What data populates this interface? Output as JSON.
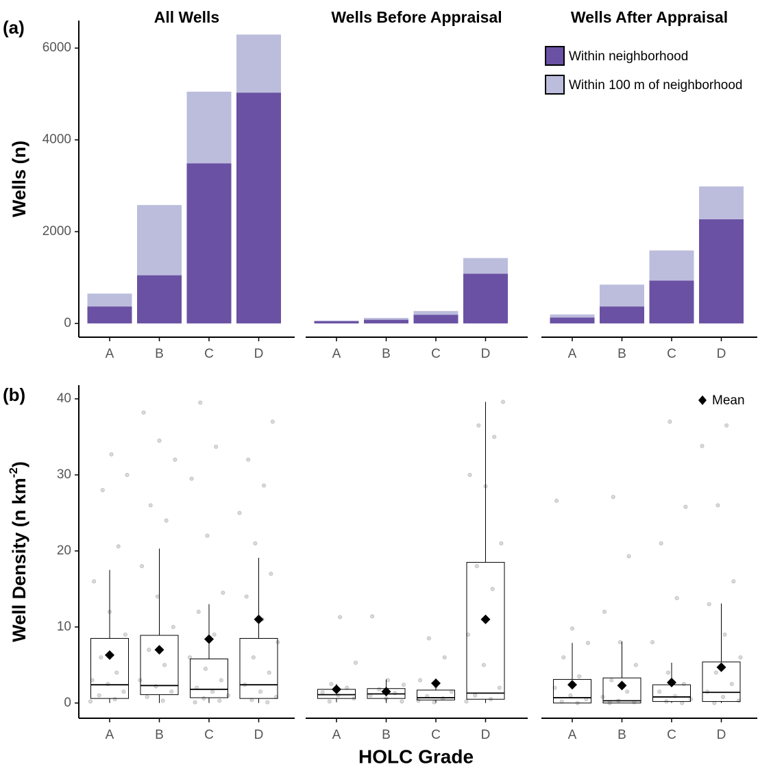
{
  "chart_data": [
    {
      "type": "bar",
      "label": "(a)",
      "ylabel": "Wells (n)",
      "categories": [
        "A",
        "B",
        "C",
        "D"
      ],
      "series": [
        {
          "name": "Within neighborhood",
          "color": "#6a51a3"
        },
        {
          "name": "Within 100 m of neighborhood",
          "color": "#bcbddc"
        }
      ],
      "facets": [
        {
          "title": "All Wells",
          "values": [
            [
              370,
              1050,
              3490,
              5030
            ],
            [
              280,
              1530,
              1560,
              1265
            ]
          ]
        },
        {
          "title": "Wells Before Appraisal",
          "values": [
            [
              50,
              80,
              190,
              1085
            ],
            [
              10,
              40,
              80,
              340
            ]
          ]
        },
        {
          "title": "Wells After Appraisal",
          "values": [
            [
              130,
              370,
              935,
              2270
            ],
            [
              65,
              475,
              655,
              715
            ]
          ]
        }
      ],
      "ylim": [
        -300,
        6600
      ],
      "yticks": [
        0,
        2000,
        4000,
        6000
      ],
      "legend": "top-right"
    },
    {
      "type": "box",
      "label": "(b)",
      "ylabel": [
        "Well Density (n km",
        "-2",
        ")"
      ],
      "xlabel": "HOLC Grade",
      "categories": [
        "A",
        "B",
        "C",
        "D"
      ],
      "mean_label": "Mean",
      "facets": [
        {
          "boxes": [
            {
              "low": 0,
              "q1": 0.6,
              "median": 2.4,
              "q3": 8.5,
              "high": 17.5,
              "mean": 6.3,
              "points": [
                0.2,
                0.5,
                1,
                1.5,
                2.5,
                3,
                4,
                6,
                9,
                12,
                16,
                20.6,
                28,
                30,
                32.7
              ]
            },
            {
              "low": 0,
              "q1": 1.1,
              "median": 2.3,
              "q3": 8.9,
              "high": 20.3,
              "mean": 7.0,
              "points": [
                0.3,
                0.8,
                1.5,
                2.2,
                3,
                5,
                7,
                10,
                14,
                18,
                24,
                26,
                32,
                34.5,
                38.2
              ]
            },
            {
              "low": 0,
              "q1": 0.7,
              "median": 1.8,
              "q3": 5.8,
              "high": 13,
              "mean": 8.4,
              "points": [
                0.1,
                0.3,
                0.6,
                1,
                1.5,
                2,
                3,
                4.5,
                6,
                9,
                12,
                14.5,
                22,
                29.5,
                33.7,
                39.5
              ]
            },
            {
              "low": 0,
              "q1": 0.6,
              "median": 2.4,
              "q3": 8.5,
              "high": 19.1,
              "mean": 11.0,
              "points": [
                0.1,
                0.4,
                0.8,
                1.5,
                2.4,
                4,
                6,
                8,
                11,
                14,
                17,
                21,
                25,
                28.6,
                32,
                37
              ]
            }
          ]
        },
        {
          "boxes": [
            {
              "low": 0.1,
              "q1": 0.6,
              "median": 1.1,
              "q3": 1.8,
              "high": 2.5,
              "mean": 1.8,
              "points": [
                0.2,
                0.6,
                1,
                1.4,
                2,
                2.5,
                5.3,
                11.3
              ]
            },
            {
              "low": 0,
              "q1": 0.6,
              "median": 1.2,
              "q3": 1.9,
              "high": 3.1,
              "mean": 1.5,
              "points": [
                0.2,
                0.6,
                1,
                1.3,
                1.8,
                2.4,
                3,
                11.4
              ]
            },
            {
              "low": 0,
              "q1": 0.4,
              "median": 0.7,
              "q3": 1.7,
              "high": 3.2,
              "mean": 2.6,
              "points": [
                0.1,
                0.3,
                0.6,
                0.9,
                1.5,
                2.2,
                3,
                6,
                8.5
              ]
            },
            {
              "low": 0,
              "q1": 0.5,
              "median": 1.3,
              "q3": 18.5,
              "high": 39.6,
              "mean": 11.0,
              "points": [
                0.2,
                0.5,
                1,
                2,
                5,
                9,
                15,
                18,
                21,
                28.5,
                30,
                35,
                36.5,
                39.6
              ]
            }
          ]
        },
        {
          "boxes": [
            {
              "low": 0,
              "q1": 0,
              "median": 0.7,
              "q3": 3.1,
              "high": 7.9,
              "mean": 2.4,
              "points": [
                0,
                0.2,
                0.5,
                1,
                2,
                3.5,
                6,
                7.9,
                9.8,
                26.6
              ]
            },
            {
              "low": 0,
              "q1": 0,
              "median": 0.3,
              "q3": 3.3,
              "high": 8.1,
              "mean": 2.3,
              "points": [
                0,
                0.1,
                0.3,
                0.8,
                1.5,
                3,
                5,
                8,
                12,
                19.3,
                27.1
              ]
            },
            {
              "low": 0,
              "q1": 0.2,
              "median": 0.8,
              "q3": 2.4,
              "high": 5.3,
              "mean": 2.7,
              "points": [
                0,
                0.2,
                0.5,
                0.9,
                1.5,
                2.5,
                4,
                8,
                13.8,
                21,
                25.8,
                37
              ]
            },
            {
              "low": 0,
              "q1": 0.2,
              "median": 1.4,
              "q3": 5.4,
              "high": 13.1,
              "mean": 4.7,
              "points": [
                0,
                0.3,
                0.8,
                1.5,
                2.5,
                4,
                6,
                9,
                13,
                16,
                26,
                33.8,
                36.5
              ]
            }
          ]
        }
      ],
      "ylim": [
        -2,
        41.8
      ],
      "yticks": [
        0,
        10,
        20,
        30,
        40
      ]
    }
  ]
}
